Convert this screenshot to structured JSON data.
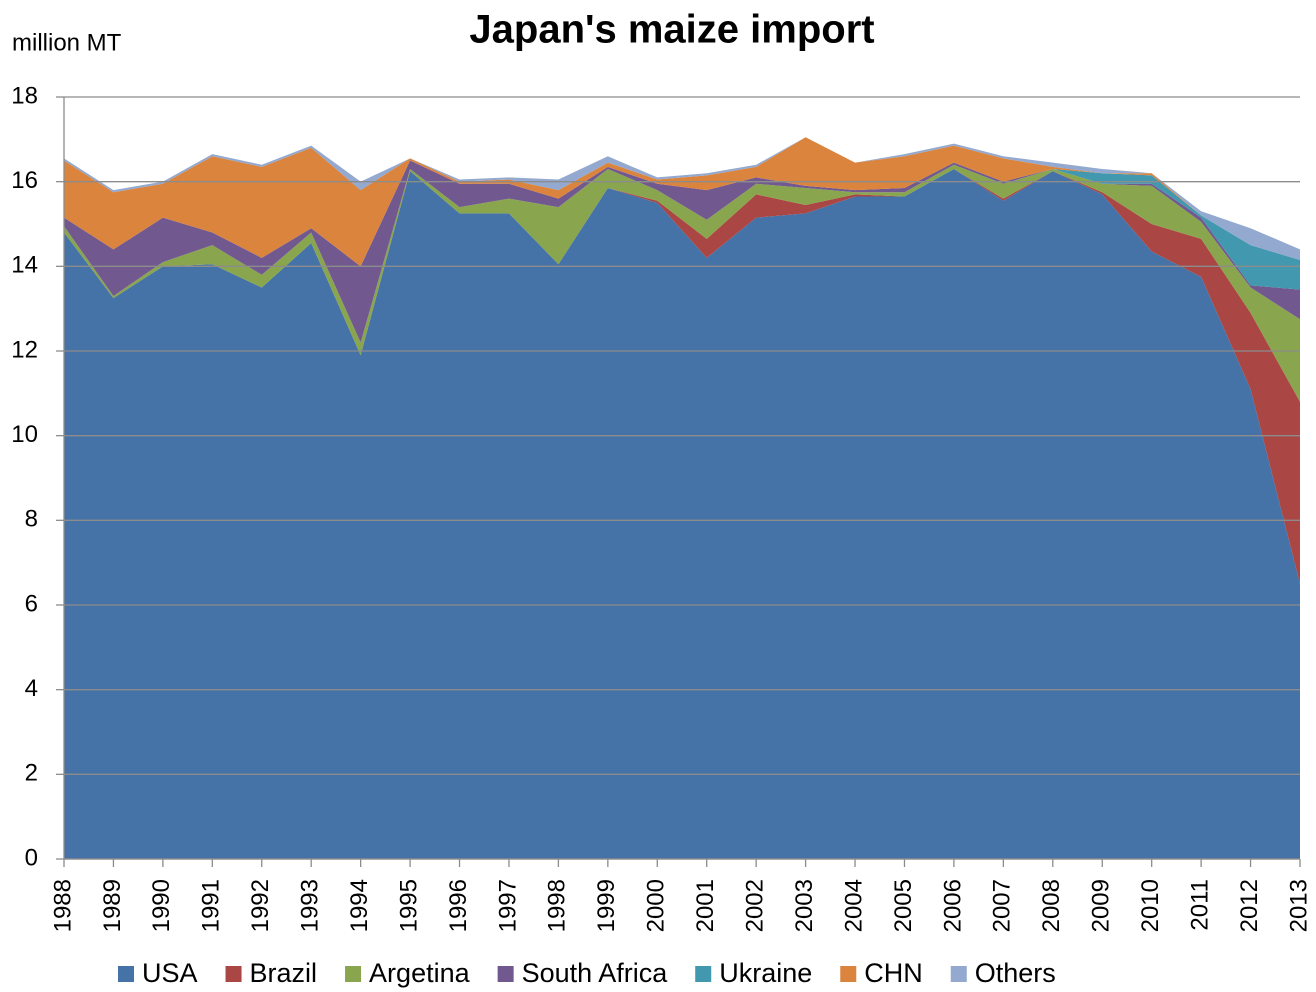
{
  "chart_data": {
    "type": "stacked_area",
    "title": "Japan's maize import",
    "y_label": "million MT",
    "categories": [
      "1988",
      "1989",
      "1990",
      "1991",
      "1992",
      "1993",
      "1994",
      "1995",
      "1996",
      "1997",
      "1998",
      "1999",
      "2000",
      "2001",
      "2002",
      "2003",
      "2004",
      "2005",
      "2006",
      "2007",
      "2008",
      "2009",
      "2010",
      "2011",
      "2012",
      "2013"
    ],
    "series": [
      {
        "name": "USA",
        "color": "#4572a7",
        "values": [
          14.8,
          13.25,
          14.0,
          14.05,
          13.5,
          14.55,
          11.9,
          16.25,
          15.25,
          15.25,
          14.05,
          15.85,
          15.5,
          14.2,
          15.15,
          15.25,
          15.65,
          15.65,
          16.3,
          15.55,
          16.25,
          15.7,
          14.35,
          13.75,
          11.1,
          6.5
        ]
      },
      {
        "name": "Brazil",
        "color": "#aa4643",
        "values": [
          0,
          0,
          0,
          0,
          0,
          0,
          0,
          0,
          0,
          0,
          0,
          0,
          0.05,
          0.45,
          0.55,
          0.2,
          0.05,
          0,
          0,
          0.05,
          0,
          0.05,
          0.65,
          0.9,
          1.8,
          4.3
        ]
      },
      {
        "name": "Argetina",
        "color": "#89a54e",
        "values": [
          0.15,
          0.05,
          0.1,
          0.45,
          0.3,
          0.25,
          0.3,
          0.05,
          0.15,
          0.35,
          1.35,
          0.45,
          0.25,
          0.45,
          0.25,
          0.4,
          0.05,
          0.1,
          0.1,
          0.35,
          0.05,
          0.2,
          0.9,
          0.4,
          0.6,
          1.95
        ]
      },
      {
        "name": "South Africa",
        "color": "#71588f",
        "values": [
          0.2,
          1.1,
          1.05,
          0.3,
          0.4,
          0.1,
          1.8,
          0.2,
          0.55,
          0.35,
          0.2,
          0.05,
          0.15,
          0.7,
          0.15,
          0.05,
          0.05,
          0.1,
          0.05,
          0.05,
          0,
          0,
          0.05,
          0.1,
          0.05,
          0.7
        ]
      },
      {
        "name": "Ukraine",
        "color": "#4198af",
        "values": [
          0,
          0,
          0,
          0,
          0,
          0,
          0,
          0,
          0,
          0,
          0,
          0,
          0,
          0,
          0,
          0,
          0,
          0,
          0,
          0,
          0,
          0.25,
          0.2,
          0.05,
          0.95,
          0.7
        ]
      },
      {
        "name": "CHN",
        "color": "#db843d",
        "values": [
          1.35,
          1.35,
          0.8,
          1.8,
          2.15,
          1.9,
          1.8,
          0.05,
          0.05,
          0.1,
          0.2,
          0.1,
          0.1,
          0.35,
          0.25,
          1.15,
          0.65,
          0.75,
          0.4,
          0.55,
          0.05,
          0,
          0.05,
          0,
          0,
          0
        ]
      },
      {
        "name": "Others",
        "color": "#93a9cf",
        "values": [
          0.05,
          0.05,
          0.05,
          0.05,
          0.05,
          0.05,
          0.2,
          0,
          0.05,
          0.05,
          0.25,
          0.15,
          0.05,
          0.05,
          0.05,
          0,
          0,
          0.05,
          0.05,
          0.05,
          0.1,
          0.1,
          0,
          0.1,
          0.4,
          0.25
        ]
      }
    ],
    "ylim": [
      0,
      18
    ],
    "yticks": [
      0,
      2,
      4,
      6,
      8,
      10,
      12,
      14,
      16,
      18
    ],
    "grid": true,
    "legend": "bottom"
  }
}
